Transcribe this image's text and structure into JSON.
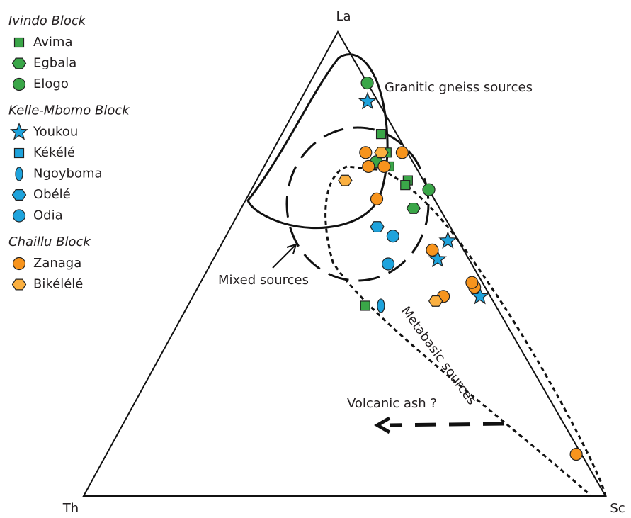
{
  "chart_data": {
    "type": "ternary",
    "axes": {
      "top": "La",
      "left": "Th",
      "right": "Sc"
    },
    "fields": {
      "granitic": "Granitic gneiss sources",
      "mixed": "Mixed sources",
      "metabasic": "Metabasic sources",
      "ash": "Volcanic ash ?"
    },
    "groups": [
      {
        "title": "Ivindo Block",
        "series": [
          {
            "name": "Avima",
            "marker": "square",
            "color": "#3aa648",
            "la": [
              78,
              74,
              71,
              68,
              67,
              41
            ],
            "th": [
              3,
              4,
              5,
              3,
              4,
              25
            ],
            "sc": [
              19,
              22,
              24,
              29,
              29,
              34
            ]
          },
          {
            "name": "Egbala",
            "marker": "hexagon",
            "color": "#3aa648",
            "la": [
              72,
              62
            ],
            "th": [
              7,
              5
            ],
            "sc": [
              21,
              33
            ]
          },
          {
            "name": "Elogo",
            "marker": "circle",
            "color": "#3aa648",
            "la": [
              89,
              66,
              72
            ],
            "th": [
              0,
              0,
              7
            ],
            "sc": [
              11,
              34,
              21
            ]
          }
        ]
      },
      {
        "title": "Kelle-Mbomo Block",
        "series": [
          {
            "name": "Youkou",
            "marker": "star",
            "color": "#1ea3dc",
            "la": [
              85,
              55,
              51,
              43
            ],
            "th": [
              2,
              2,
              6,
              2
            ],
            "sc": [
              13,
              43,
              43,
              55
            ]
          },
          {
            "name": "Kékélé",
            "marker": "square",
            "color": "#1ea3dc",
            "la": [],
            "th": [],
            "sc": []
          },
          {
            "name": "Ngoyboma",
            "marker": "ellipse",
            "color": "#1ea3dc",
            "la": [
              41
            ],
            "th": [
              22
            ],
            "sc": [
              37
            ]
          },
          {
            "name": "Obélé",
            "marker": "hexagon",
            "color": "#1ea3dc",
            "la": [
              58
            ],
            "th": [
              14
            ],
            "sc": [
              28
            ]
          },
          {
            "name": "Odia",
            "marker": "circle",
            "color": "#1ea3dc",
            "la": [
              56,
              50
            ],
            "th": [
              12,
              16
            ],
            "sc": [
              32,
              34
            ]
          }
        ]
      },
      {
        "title": "Chaillu Block",
        "series": [
          {
            "name": "Zanaga",
            "marker": "circle",
            "color": "#f7941d",
            "la": [
              74,
              74,
              71,
              71,
              64,
              53,
              45,
              46,
              43,
              9
            ],
            "th": [
              8,
              1,
              9,
              6,
              11,
              6,
              2,
              2,
              9,
              1
            ],
            "sc": [
              18,
              25,
              20,
              23,
              25,
              41,
              53,
              52,
              48,
              90
            ]
          },
          {
            "name": "Bikélélé",
            "marker": "hexagon",
            "color": "#fbb040",
            "la": [
              74,
              68,
              42
            ],
            "th": [
              5,
              15,
              11
            ],
            "sc": [
              21,
              17,
              47
            ]
          }
        ]
      }
    ]
  }
}
